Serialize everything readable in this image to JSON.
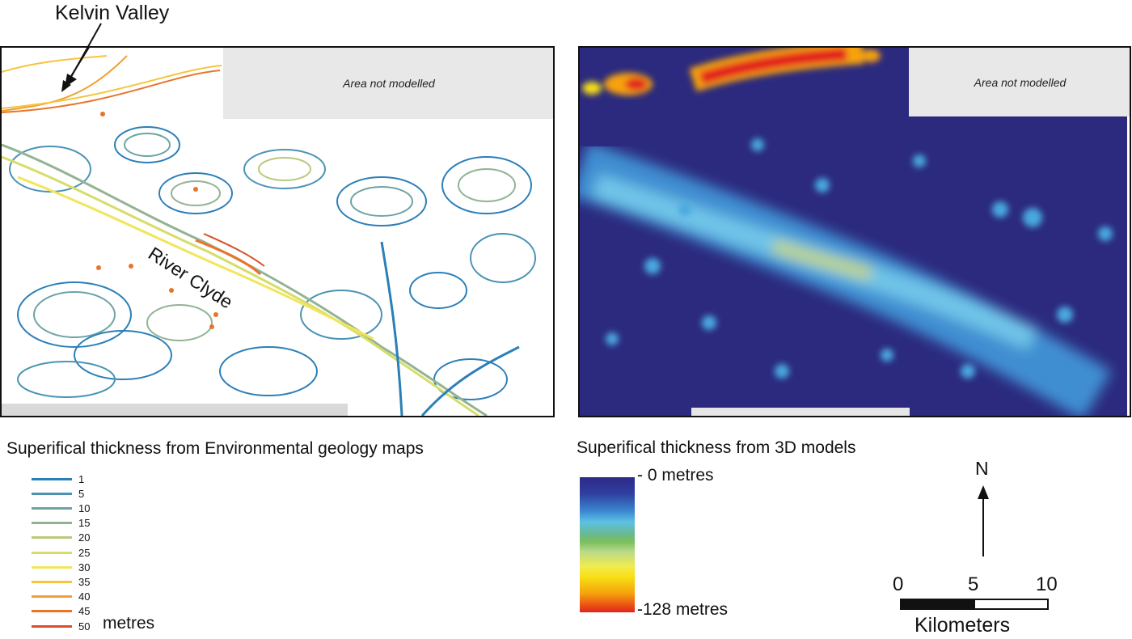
{
  "left_map": {
    "callout_label": "Kelvin Valley",
    "river_label": "River Clyde",
    "not_modelled": "Area not modelled"
  },
  "right_map": {
    "not_modelled": "Area not modelled"
  },
  "left_legend": {
    "title": "Superifical thickness from Environmental geology maps",
    "unit": "metres",
    "items": [
      {
        "value": "1",
        "color": "#2b7fb8"
      },
      {
        "value": "5",
        "color": "#4a93b4"
      },
      {
        "value": "10",
        "color": "#6ea3a6"
      },
      {
        "value": "15",
        "color": "#93b394"
      },
      {
        "value": "20",
        "color": "#b9c97c"
      },
      {
        "value": "25",
        "color": "#d7dd6a"
      },
      {
        "value": "30",
        "color": "#f1e65a"
      },
      {
        "value": "35",
        "color": "#f6c43f"
      },
      {
        "value": "40",
        "color": "#f2a035"
      },
      {
        "value": "45",
        "color": "#e8742b"
      },
      {
        "value": "50",
        "color": "#d9502a"
      }
    ]
  },
  "right_legend": {
    "title": "Superifical thickness from 3D models",
    "top_label": "- 0 metres",
    "bottom_label": "-128 metres",
    "low_color": "#2e2a86",
    "high_color": "#e2231a"
  },
  "north_arrow": {
    "letter": "N"
  },
  "scale_bar": {
    "labels": [
      "0",
      "5",
      "10"
    ],
    "unit": "Kilometers"
  }
}
